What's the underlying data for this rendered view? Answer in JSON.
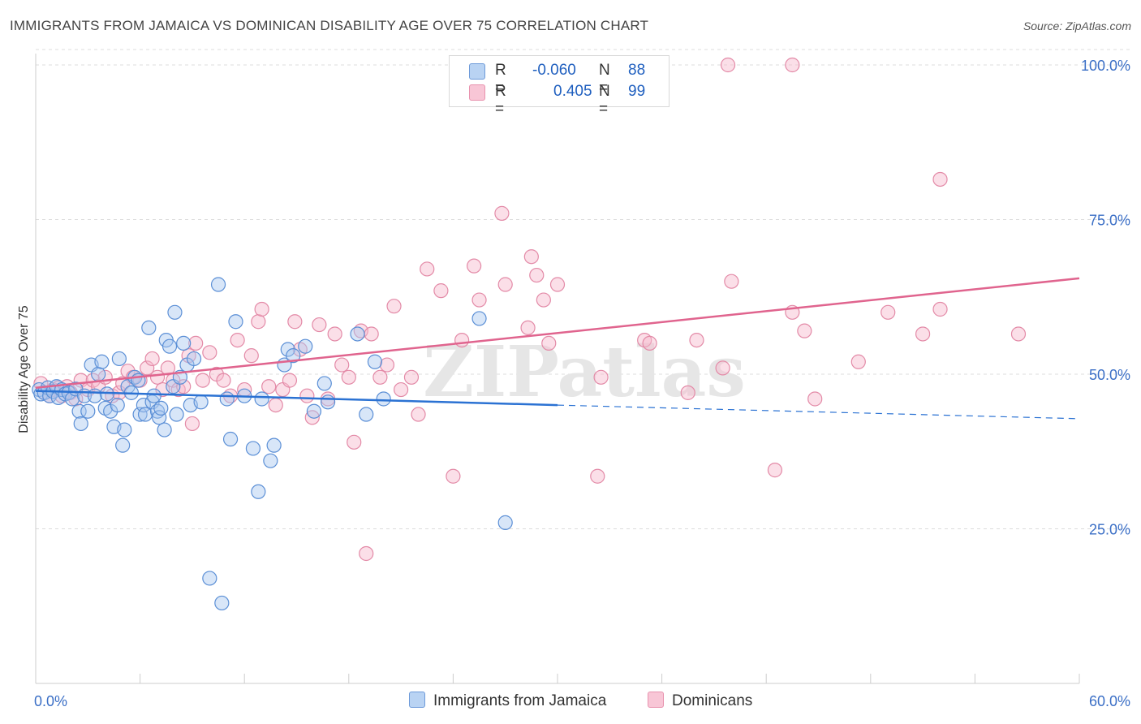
{
  "title": "IMMIGRANTS FROM JAMAICA VS DOMINICAN DISABILITY AGE OVER 75 CORRELATION CHART",
  "source": "Source: ZipAtlas.com",
  "watermark": "ZIPatlas",
  "legend": {
    "rows": [
      {
        "r_label": "R =",
        "r_value": "-0.060",
        "n_label": "N =",
        "n_value": "88"
      },
      {
        "r_label": "R =",
        "r_value": "0.405",
        "n_label": "N =",
        "n_value": "99"
      }
    ]
  },
  "bottom_legend": [
    "Immigrants from Jamaica",
    "Dominicans"
  ],
  "colors": {
    "jamaica_fill": "#a8c8f0",
    "jamaica_stroke": "#5b8fd6",
    "jamaica_line": "#2b72d3",
    "dominican_fill": "#f6b8cc",
    "dominican_stroke": "#e38aa7",
    "dominican_line": "#e0648e",
    "axis_label": "#3b6fc6",
    "grid": "#dddddd"
  },
  "chart_data": {
    "type": "scatter",
    "title": "IMMIGRANTS FROM JAMAICA VS DOMINICAN DISABILITY AGE OVER 75 CORRELATION CHART",
    "xlabel": "",
    "ylabel": "Disability Age Over 75",
    "xlim": [
      0,
      60
    ],
    "ylim": [
      0,
      105
    ],
    "x_tick_labels": [
      "0.0%",
      "60.0%"
    ],
    "y_ticks": [
      25,
      50,
      75,
      100
    ],
    "y_tick_labels": [
      "25.0%",
      "50.0%",
      "75.0%",
      "100.0%"
    ],
    "grid": true,
    "legend_position": "top-center",
    "series": [
      {
        "name": "Immigrants from Jamaica",
        "trend": {
          "x": [
            0,
            30,
            60
          ],
          "y": [
            47.3,
            45.0,
            42.8
          ],
          "solid_until_x": 30
        },
        "points": [
          [
            0.2,
            47.5
          ],
          [
            0.3,
            46.8
          ],
          [
            0.5,
            47.0
          ],
          [
            0.7,
            47.8
          ],
          [
            0.8,
            46.5
          ],
          [
            1.0,
            47.2
          ],
          [
            1.2,
            48.0
          ],
          [
            1.3,
            46.2
          ],
          [
            1.5,
            47.5
          ],
          [
            1.7,
            46.8
          ],
          [
            1.9,
            47.0
          ],
          [
            2.1,
            46.0
          ],
          [
            2.3,
            47.6
          ],
          [
            2.5,
            44.0
          ],
          [
            2.6,
            42.0
          ],
          [
            2.8,
            46.5
          ],
          [
            3.0,
            44.0
          ],
          [
            3.2,
            51.5
          ],
          [
            3.4,
            46.5
          ],
          [
            3.6,
            50.0
          ],
          [
            3.8,
            52.0
          ],
          [
            4.0,
            44.5
          ],
          [
            4.1,
            46.8
          ],
          [
            4.3,
            44.0
          ],
          [
            4.5,
            41.5
          ],
          [
            4.7,
            45.0
          ],
          [
            4.8,
            52.5
          ],
          [
            5.0,
            38.5
          ],
          [
            5.1,
            41.0
          ],
          [
            5.3,
            48.0
          ],
          [
            5.5,
            47.0
          ],
          [
            5.7,
            49.5
          ],
          [
            5.9,
            49.0
          ],
          [
            6.0,
            43.5
          ],
          [
            6.2,
            45.0
          ],
          [
            6.3,
            43.5
          ],
          [
            6.5,
            57.5
          ],
          [
            6.7,
            45.5
          ],
          [
            6.8,
            46.5
          ],
          [
            7.0,
            44.0
          ],
          [
            7.1,
            43.0
          ],
          [
            7.2,
            44.5
          ],
          [
            7.4,
            41.0
          ],
          [
            7.5,
            55.5
          ],
          [
            7.7,
            54.5
          ],
          [
            7.9,
            48.0
          ],
          [
            8.0,
            60.0
          ],
          [
            8.1,
            43.5
          ],
          [
            8.3,
            49.5
          ],
          [
            8.5,
            55.0
          ],
          [
            8.7,
            51.5
          ],
          [
            8.9,
            45.0
          ],
          [
            9.1,
            52.5
          ],
          [
            9.5,
            45.5
          ],
          [
            10.0,
            17.0
          ],
          [
            10.5,
            64.5
          ],
          [
            10.7,
            13.0
          ],
          [
            11.0,
            46.0
          ],
          [
            11.2,
            39.5
          ],
          [
            11.5,
            58.5
          ],
          [
            12.0,
            46.5
          ],
          [
            12.5,
            38.0
          ],
          [
            12.8,
            31.0
          ],
          [
            13.0,
            46.0
          ],
          [
            13.5,
            36.0
          ],
          [
            13.7,
            38.5
          ],
          [
            14.3,
            51.5
          ],
          [
            14.5,
            54.0
          ],
          [
            14.8,
            53.0
          ],
          [
            15.5,
            54.5
          ],
          [
            16.0,
            44.0
          ],
          [
            16.6,
            48.5
          ],
          [
            16.8,
            45.5
          ],
          [
            18.5,
            56.5
          ],
          [
            19.0,
            43.5
          ],
          [
            19.5,
            52.0
          ],
          [
            20.0,
            46.0
          ],
          [
            25.5,
            59.0
          ],
          [
            27.0,
            26.0
          ]
        ]
      },
      {
        "name": "Dominicans",
        "trend": {
          "x": [
            0,
            60
          ],
          "y": [
            47.8,
            65.5
          ]
        },
        "points": [
          [
            0.3,
            48.5
          ],
          [
            0.5,
            47.0
          ],
          [
            0.8,
            46.5
          ],
          [
            1.0,
            47.5
          ],
          [
            1.3,
            47.8
          ],
          [
            1.5,
            46.5
          ],
          [
            1.8,
            48.0
          ],
          [
            2.0,
            47.0
          ],
          [
            2.3,
            46.0
          ],
          [
            2.6,
            49.0
          ],
          [
            3.0,
            47.5
          ],
          [
            3.3,
            49.0
          ],
          [
            3.6,
            48.0
          ],
          [
            4.0,
            49.5
          ],
          [
            4.4,
            46.5
          ],
          [
            4.8,
            47.0
          ],
          [
            5.0,
            48.5
          ],
          [
            5.3,
            50.5
          ],
          [
            5.6,
            49.5
          ],
          [
            6.0,
            49.0
          ],
          [
            6.4,
            51.0
          ],
          [
            6.7,
            52.5
          ],
          [
            7.0,
            49.5
          ],
          [
            7.3,
            47.5
          ],
          [
            7.6,
            51.0
          ],
          [
            7.9,
            49.0
          ],
          [
            8.2,
            47.5
          ],
          [
            8.5,
            48.0
          ],
          [
            8.8,
            53.0
          ],
          [
            9.0,
            42.0
          ],
          [
            9.2,
            55.0
          ],
          [
            9.6,
            49.0
          ],
          [
            10.0,
            53.5
          ],
          [
            10.4,
            50.0
          ],
          [
            10.8,
            49.0
          ],
          [
            11.2,
            46.5
          ],
          [
            11.6,
            55.5
          ],
          [
            12.0,
            47.5
          ],
          [
            12.4,
            53.0
          ],
          [
            12.8,
            58.5
          ],
          [
            13.0,
            60.5
          ],
          [
            13.4,
            48.0
          ],
          [
            13.8,
            45.0
          ],
          [
            14.2,
            47.5
          ],
          [
            14.6,
            49.0
          ],
          [
            14.9,
            58.5
          ],
          [
            15.2,
            54.0
          ],
          [
            15.6,
            46.5
          ],
          [
            15.9,
            43.0
          ],
          [
            16.3,
            58.0
          ],
          [
            16.8,
            46.0
          ],
          [
            17.2,
            56.5
          ],
          [
            17.6,
            51.5
          ],
          [
            18.0,
            49.5
          ],
          [
            18.3,
            39.0
          ],
          [
            18.7,
            57.0
          ],
          [
            19.0,
            21.0
          ],
          [
            19.3,
            56.5
          ],
          [
            19.8,
            49.5
          ],
          [
            20.2,
            51.5
          ],
          [
            20.6,
            61.0
          ],
          [
            21.0,
            47.5
          ],
          [
            21.6,
            49.5
          ],
          [
            22.0,
            43.5
          ],
          [
            22.5,
            67.0
          ],
          [
            23.3,
            63.5
          ],
          [
            24.0,
            33.5
          ],
          [
            24.5,
            55.5
          ],
          [
            25.2,
            67.5
          ],
          [
            25.5,
            62.0
          ],
          [
            26.8,
            76.0
          ],
          [
            27.0,
            64.5
          ],
          [
            28.3,
            57.5
          ],
          [
            28.5,
            69.0
          ],
          [
            28.8,
            66.0
          ],
          [
            29.2,
            62.0
          ],
          [
            29.5,
            55.0
          ],
          [
            30.0,
            64.5
          ],
          [
            32.5,
            49.5
          ],
          [
            32.3,
            33.5
          ],
          [
            35.0,
            55.5
          ],
          [
            35.3,
            55.0
          ],
          [
            37.5,
            47.0
          ],
          [
            38.0,
            55.5
          ],
          [
            39.5,
            51.0
          ],
          [
            40.0,
            65.0
          ],
          [
            39.8,
            100.0
          ],
          [
            42.5,
            34.5
          ],
          [
            43.5,
            60.0
          ],
          [
            44.2,
            57.0
          ],
          [
            44.8,
            46.0
          ],
          [
            43.5,
            100.0
          ],
          [
            47.3,
            52.0
          ],
          [
            49.0,
            60.0
          ],
          [
            51.0,
            56.5
          ],
          [
            52.0,
            60.5
          ],
          [
            52.0,
            81.5
          ],
          [
            56.5,
            56.5
          ]
        ]
      }
    ]
  }
}
